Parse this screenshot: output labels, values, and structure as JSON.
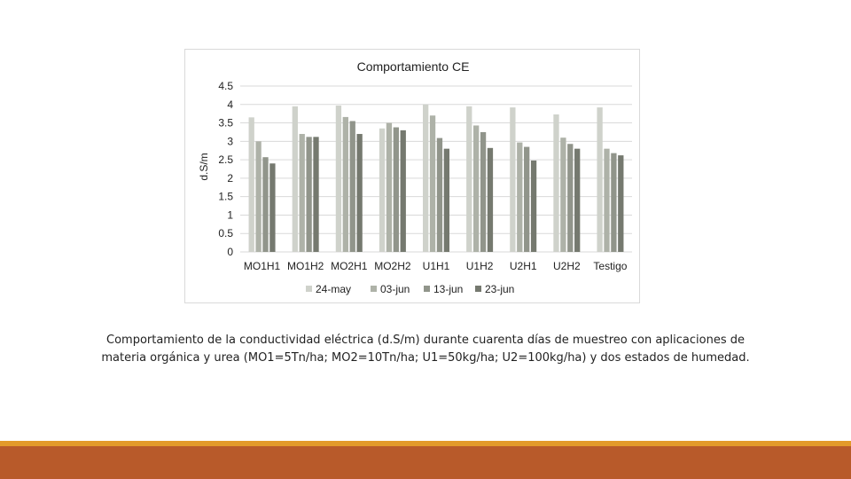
{
  "caption": "Comportamiento de la conductividad eléctrica (d.S/m) durante cuarenta días de muestreo con aplicaciones de materia orgánica y urea (MO1=5Tn/ha; MO2=10Tn/ha; U1=50kg/ha; U2=100kg/ha) y dos estados de humedad.",
  "colors": {
    "band": "#b85a2a",
    "band_top": "#e39a2a",
    "grid": "#d9d9d9"
  },
  "chart_data": {
    "type": "bar",
    "title": "Comportamiento CE",
    "xlabel": "",
    "ylabel": "d.S/m",
    "ylim": [
      0,
      4.5
    ],
    "yticks": [
      "0",
      "0.5",
      "1",
      "1.5",
      "2",
      "2.5",
      "3",
      "3.5",
      "4",
      "4.5"
    ],
    "grid": true,
    "legend_position": "bottom",
    "categories": [
      "MO1H1",
      "MO1H2",
      "MO2H1",
      "MO2H2",
      "U1H1",
      "U1H2",
      "U2H1",
      "U2H2",
      "Testigo"
    ],
    "series": [
      {
        "name": "24-may",
        "color": "#cfd2cb",
        "values": [
          3.65,
          3.95,
          3.97,
          3.35,
          4.0,
          3.95,
          3.92,
          3.73,
          3.92
        ]
      },
      {
        "name": "03-jun",
        "color": "#aeb2a8",
        "values": [
          3.0,
          3.2,
          3.66,
          3.5,
          3.7,
          3.43,
          2.97,
          3.1,
          2.8
        ]
      },
      {
        "name": "13-jun",
        "color": "#91958b",
        "values": [
          2.57,
          3.12,
          3.55,
          3.38,
          3.09,
          3.25,
          2.85,
          2.93,
          2.68
        ]
      },
      {
        "name": "23-jun",
        "color": "#75796f",
        "values": [
          2.4,
          3.12,
          3.2,
          3.3,
          2.8,
          2.82,
          2.48,
          2.8,
          2.62
        ]
      }
    ]
  }
}
